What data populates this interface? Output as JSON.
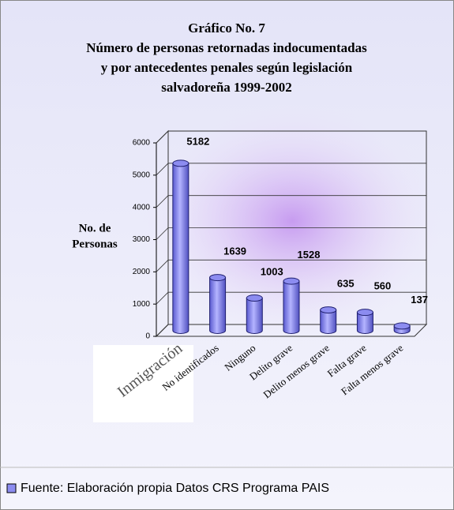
{
  "chart_data": {
    "type": "bar",
    "title": [
      "Gráfico No. 7",
      "Número de personas retornadas indocumentadas",
      "y por antecedentes penales según legislación",
      "salvadoreña 1999-2002"
    ],
    "y_label": [
      "No. de",
      "Personas"
    ],
    "categories": [
      "Inmigración",
      "No identificados",
      "Ninguno",
      "Delito grave",
      "Delito menos grave",
      "Falta grave",
      "Falta menos grave"
    ],
    "series": [
      {
        "name": "Fuente: Elaboración propia Datos CRS Programa PAIS",
        "color": "#8c8cf0",
        "values": [
          5182,
          1639,
          1003,
          1528,
          635,
          560,
          137
        ]
      }
    ],
    "ylim": [
      0,
      6000
    ],
    "yticks": [
      0,
      1000,
      2000,
      3000,
      4000,
      5000,
      6000
    ],
    "grid": true
  }
}
